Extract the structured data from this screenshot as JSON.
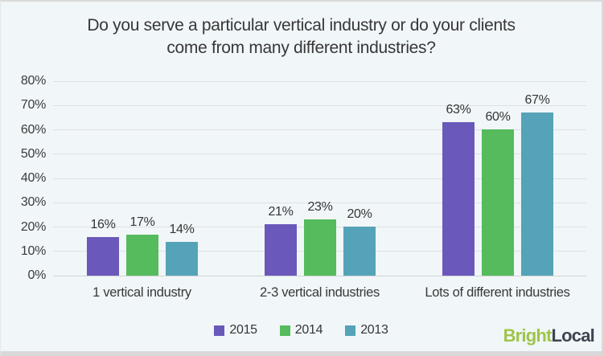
{
  "header": {
    "title_lines": [
      "Do you serve a particular vertical industry or do your clients",
      "come from many different industries?"
    ]
  },
  "chart_data": {
    "type": "bar",
    "title": "Do you serve a particular vertical industry or do your clients come from many different industries?",
    "categories": [
      "1 vertical industry",
      "2-3 vertical industries",
      "Lots of different industries"
    ],
    "series": [
      {
        "name": "2015",
        "color": "#6a59ba",
        "values": [
          16,
          21,
          63
        ]
      },
      {
        "name": "2014",
        "color": "#55bb5c",
        "values": [
          17,
          23,
          60
        ]
      },
      {
        "name": "2013",
        "color": "#55a3b8",
        "values": [
          14,
          20,
          67
        ]
      }
    ],
    "data_labels": [
      [
        "16%",
        "21%",
        "63%"
      ],
      [
        "17%",
        "23%",
        "60%"
      ],
      [
        "14%",
        "20%",
        "67%"
      ]
    ],
    "value_suffix": "%",
    "ylabel": "",
    "xlabel": "",
    "ylim": [
      0,
      80
    ],
    "ytick_step": 10,
    "ytick_labels": [
      "0%",
      "10%",
      "20%",
      "30%",
      "40%",
      "50%",
      "60%",
      "70%",
      "80%"
    ],
    "grid": true,
    "legend_position": "bottom",
    "background_color": "#f1f6f8",
    "gridline_color": "#dde1e4",
    "text_color": "#3b3b3d"
  },
  "branding": {
    "logo_part1": "Bright",
    "logo_part2": "Local",
    "logo_color1": "#9dc549",
    "logo_color2": "#3e4450"
  }
}
